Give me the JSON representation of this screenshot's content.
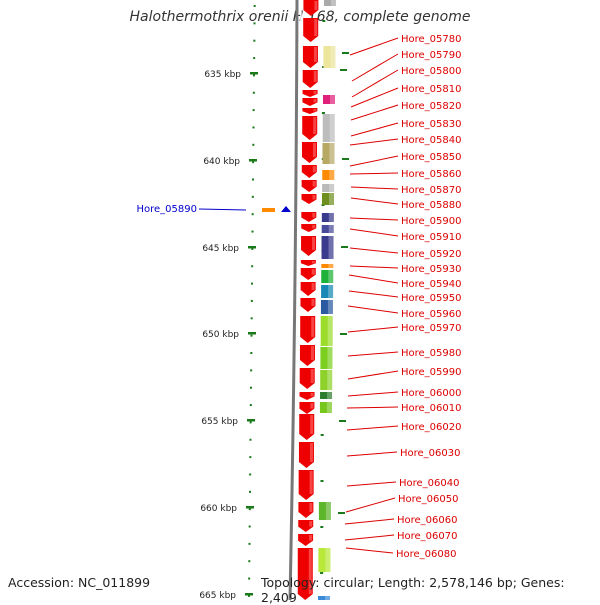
{
  "title": "Halothermothrix orenii H 168, complete genome",
  "accession": "Accession: NC_011899",
  "topology": "Topology: circular; Length: 2,578,146 bp; Genes: 2,409",
  "colors": {
    "gene_arrow": "#ee0000",
    "label": "#dd0000",
    "highlight": "#0000cc",
    "tick": "#1a7a1a",
    "backbone": "#777777"
  },
  "ruler": [
    "635 kbp",
    "640 kbp",
    "645 kbp",
    "650 kbp",
    "655 kbp",
    "660 kbp",
    "665 kbp"
  ],
  "highlight": {
    "label": "Hore_05890"
  },
  "genes": [
    "Hore_05780",
    "Hore_05790",
    "Hore_05800",
    "Hore_05810",
    "Hore_05820",
    "Hore_05830",
    "Hore_05840",
    "Hore_05850",
    "Hore_05860",
    "Hore_05870",
    "Hore_05880",
    "Hore_05900",
    "Hore_05910",
    "Hore_05920",
    "Hore_05930",
    "Hore_05940",
    "Hore_05950",
    "Hore_05960",
    "Hore_05970",
    "Hore_05980",
    "Hore_05990",
    "Hore_06000",
    "Hore_06010",
    "Hore_06020",
    "Hore_06030",
    "Hore_06040",
    "Hore_06050",
    "Hore_06060",
    "Hore_06070",
    "Hore_06080"
  ]
}
